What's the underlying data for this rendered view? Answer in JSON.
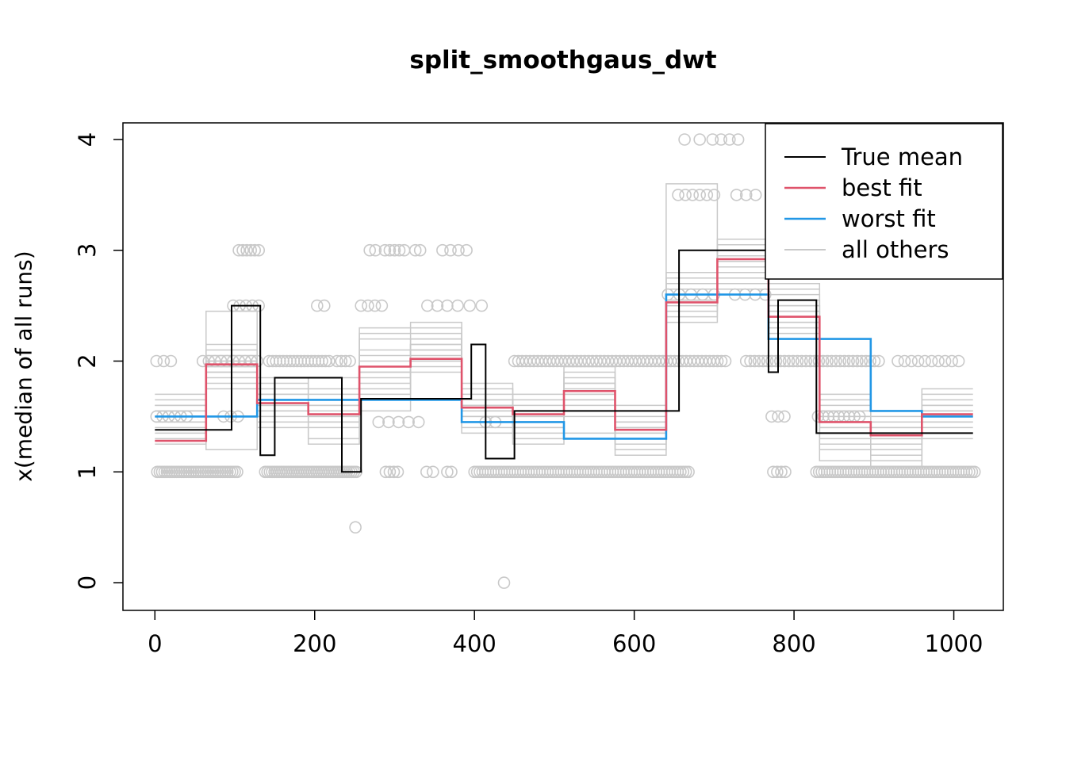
{
  "chart_data": {
    "type": "line",
    "title": "split_smoothgaus_dwt",
    "ylabel": "x(median of all runs)",
    "xlabel": "",
    "x_ticks": [
      0,
      200,
      400,
      600,
      800,
      1000
    ],
    "y_ticks": [
      0,
      1,
      2,
      3,
      4
    ],
    "xlim": [
      -40,
      1062
    ],
    "ylim": [
      -0.25,
      4.15
    ],
    "grid": false,
    "legend_position": "top-right",
    "colors": {
      "true_mean": "#000000",
      "best_fit": "#DF536B",
      "worst_fit": "#2297E6",
      "others": "#C9C9C9"
    },
    "legend": [
      {
        "label": "True mean",
        "color": "#000000",
        "width": 2
      },
      {
        "label": "best fit",
        "color": "#DF536B",
        "width": 2.6
      },
      {
        "label": "worst fit",
        "color": "#2297E6",
        "width": 2.6
      },
      {
        "label": "all others",
        "color": "#C9C9C9",
        "width": 2
      }
    ],
    "series": {
      "true_mean": {
        "breaks": [
          0,
          96,
          132,
          150,
          234,
          258,
          396,
          414,
          450,
          656,
          768,
          780,
          828,
          1024
        ],
        "levels": [
          1.38,
          2.5,
          1.15,
          1.85,
          1.0,
          1.66,
          2.15,
          1.12,
          1.55,
          3.0,
          1.9,
          2.55,
          1.35
        ]
      },
      "best_fit": {
        "breaks": [
          0,
          64,
          128,
          192,
          256,
          320,
          384,
          448,
          512,
          576,
          640,
          704,
          768,
          832,
          896,
          960,
          1024
        ],
        "levels": [
          1.28,
          1.97,
          1.62,
          1.52,
          1.95,
          2.02,
          1.58,
          1.52,
          1.73,
          1.38,
          2.53,
          2.92,
          2.4,
          1.45,
          1.33,
          1.52
        ]
      },
      "worst_fit": {
        "breaks": [
          0,
          128,
          384,
          512,
          640,
          768,
          896,
          960,
          1024
        ],
        "levels": [
          1.5,
          1.65,
          1.45,
          1.3,
          2.6,
          2.2,
          1.55,
          1.5
        ]
      },
      "others_breaks": [
        0,
        64,
        128,
        192,
        256,
        320,
        384,
        448,
        512,
        576,
        640,
        704,
        768,
        832,
        896,
        960,
        1024
      ],
      "others": [
        [
          1.5,
          1.9,
          1.65,
          1.55,
          1.9,
          2.1,
          1.6,
          1.5,
          1.75,
          1.4,
          2.55,
          2.9,
          2.45,
          1.5,
          1.35,
          1.5
        ],
        [
          1.45,
          2.0,
          1.6,
          1.5,
          2.0,
          2.0,
          1.55,
          1.55,
          1.7,
          1.35,
          2.5,
          2.95,
          2.35,
          1.4,
          1.3,
          1.55
        ],
        [
          1.6,
          1.85,
          1.7,
          1.6,
          1.85,
          2.15,
          1.65,
          1.45,
          1.8,
          1.45,
          2.6,
          2.85,
          2.5,
          1.55,
          1.4,
          1.45
        ],
        [
          1.35,
          1.95,
          1.55,
          1.45,
          2.2,
          2.25,
          1.5,
          1.4,
          1.65,
          1.3,
          2.65,
          3.0,
          2.3,
          1.35,
          1.25,
          1.6
        ],
        [
          1.55,
          2.05,
          1.75,
          1.65,
          1.7,
          1.95,
          1.7,
          1.6,
          1.85,
          1.5,
          2.45,
          2.8,
          2.55,
          1.6,
          1.45,
          1.4
        ],
        [
          1.4,
          1.8,
          1.5,
          1.4,
          2.3,
          2.3,
          1.45,
          1.35,
          1.6,
          1.25,
          2.7,
          2.7,
          2.6,
          1.3,
          1.2,
          1.65
        ],
        [
          1.65,
          2.1,
          1.8,
          1.7,
          1.95,
          2.05,
          1.75,
          1.65,
          1.9,
          1.55,
          2.4,
          2.75,
          2.4,
          1.65,
          1.5,
          1.35
        ],
        [
          1.3,
          1.75,
          1.45,
          1.25,
          2.1,
          2.2,
          1.4,
          1.3,
          1.55,
          1.2,
          2.75,
          3.05,
          2.25,
          1.25,
          1.15,
          1.7
        ],
        [
          1.7,
          2.15,
          1.85,
          1.75,
          1.8,
          1.9,
          1.8,
          1.7,
          1.95,
          1.6,
          2.35,
          2.65,
          2.65,
          1.7,
          1.55,
          1.3
        ],
        [
          1.25,
          2.45,
          1.4,
          1.3,
          2.25,
          2.35,
          1.35,
          1.25,
          1.5,
          1.15,
          2.8,
          3.1,
          2.2,
          1.2,
          1.1,
          1.75
        ],
        [
          1.5,
          1.95,
          1.6,
          1.5,
          1.9,
          2.1,
          1.55,
          1.5,
          1.7,
          1.4,
          2.55,
          2.9,
          2.45,
          1.45,
          1.35,
          1.5
        ],
        [
          1.45,
          1.2,
          1.65,
          1.85,
          1.55,
          2.0,
          1.6,
          1.45,
          1.35,
          1.3,
          3.6,
          2.6,
          2.7,
          1.1,
          1.05,
          1.55
        ],
        [
          1.55,
          1.9,
          1.7,
          1.6,
          2.05,
          2.15,
          1.65,
          1.55,
          1.8,
          1.45,
          2.6,
          2.85,
          2.35,
          1.5,
          1.4,
          1.45
        ],
        [
          1.6,
          2.0,
          1.55,
          1.45,
          1.75,
          2.2,
          1.5,
          1.4,
          1.65,
          1.35,
          2.65,
          2.95,
          2.5,
          1.4,
          1.3,
          1.6
        ]
      ]
    },
    "scatter_clusters": [
      {
        "y": 1.0,
        "x0": 3,
        "x1": 103,
        "n": 34
      },
      {
        "y": 1.0,
        "x0": 138,
        "x1": 252,
        "n": 40
      },
      {
        "y": 1.0,
        "x0": 289,
        "x1": 304,
        "n": 4
      },
      {
        "y": 1.0,
        "x0": 340,
        "x1": 348,
        "n": 2
      },
      {
        "y": 1.0,
        "x0": 366,
        "x1": 371,
        "n": 2
      },
      {
        "y": 1.0,
        "x0": 400,
        "x1": 668,
        "n": 80
      },
      {
        "y": 1.0,
        "x0": 774,
        "x1": 789,
        "n": 4
      },
      {
        "y": 1.0,
        "x0": 828,
        "x1": 1026,
        "n": 60
      },
      {
        "y": 2.0,
        "x0": 2,
        "x1": 20,
        "n": 3
      },
      {
        "y": 2.0,
        "x0": 60,
        "x1": 128,
        "n": 10
      },
      {
        "y": 2.0,
        "x0": 143,
        "x1": 218,
        "n": 18
      },
      {
        "y": 2.0,
        "x0": 228,
        "x1": 244,
        "n": 4
      },
      {
        "y": 2.0,
        "x0": 450,
        "x1": 714,
        "n": 55
      },
      {
        "y": 2.0,
        "x0": 740,
        "x1": 906,
        "n": 32
      },
      {
        "y": 2.0,
        "x0": 930,
        "x1": 1006,
        "n": 10
      },
      {
        "y": 3.0,
        "x0": 105,
        "x1": 130,
        "n": 6
      },
      {
        "y": 3.0,
        "x0": 269,
        "x1": 276,
        "n": 2
      },
      {
        "y": 3.0,
        "x0": 288,
        "x1": 312,
        "n": 5
      },
      {
        "y": 3.0,
        "x0": 326,
        "x1": 332,
        "n": 2
      },
      {
        "y": 3.0,
        "x0": 360,
        "x1": 390,
        "n": 4
      },
      {
        "y": 2.5,
        "x0": 98,
        "x1": 130,
        "n": 5
      },
      {
        "y": 2.5,
        "x0": 203,
        "x1": 212,
        "n": 2
      },
      {
        "y": 2.5,
        "x0": 258,
        "x1": 284,
        "n": 4
      },
      {
        "y": 2.5,
        "x0": 341,
        "x1": 366,
        "n": 3
      },
      {
        "y": 2.5,
        "x0": 379,
        "x1": 409,
        "n": 3
      },
      {
        "y": 3.5,
        "x0": 655,
        "x1": 700,
        "n": 6
      },
      {
        "y": 3.5,
        "x0": 728,
        "x1": 752,
        "n": 3
      },
      {
        "y": 4.0,
        "x0": 663,
        "x1": 682,
        "n": 2
      },
      {
        "y": 4.0,
        "x0": 698,
        "x1": 730,
        "n": 4
      },
      {
        "y": 2.6,
        "x0": 642,
        "x1": 700,
        "n": 5
      },
      {
        "y": 2.6,
        "x0": 726,
        "x1": 764,
        "n": 4
      },
      {
        "y": 1.5,
        "x0": 2,
        "x1": 40,
        "n": 6
      },
      {
        "y": 1.5,
        "x0": 86,
        "x1": 104,
        "n": 3
      },
      {
        "y": 1.45,
        "x0": 280,
        "x1": 330,
        "n": 5
      },
      {
        "y": 1.45,
        "x0": 414,
        "x1": 426,
        "n": 2
      },
      {
        "y": 1.5,
        "x0": 772,
        "x1": 788,
        "n": 3
      },
      {
        "y": 1.5,
        "x0": 830,
        "x1": 882,
        "n": 9
      },
      {
        "y": 0.5,
        "x0": 251,
        "x1": 251,
        "n": 1
      },
      {
        "y": 0.0,
        "x0": 437,
        "x1": 437,
        "n": 1
      }
    ]
  }
}
